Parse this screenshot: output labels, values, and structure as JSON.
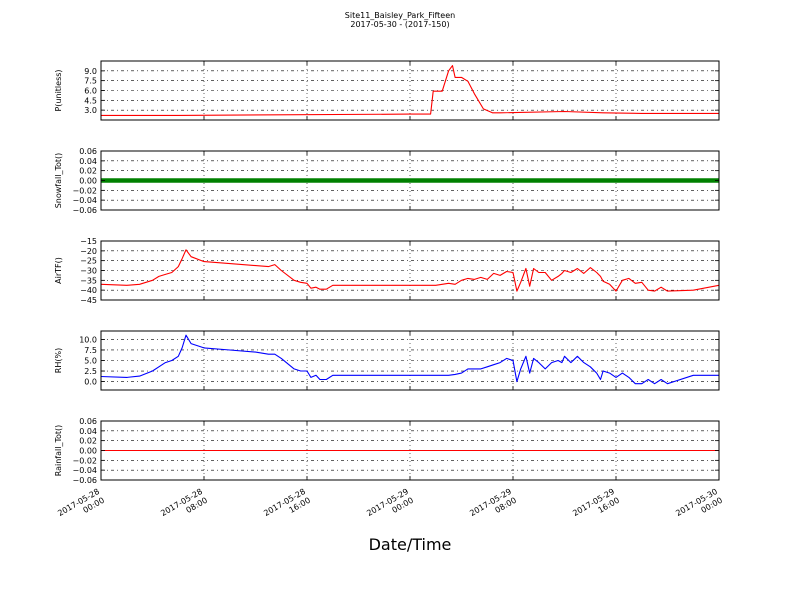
{
  "title": "Site11_Baisley_Park_Fifteen",
  "subtitle": "2017-05-30 - (2017-150)",
  "chart_data": {
    "type": "line",
    "xlabel": "Date/Time",
    "xlim_hours": [
      0,
      48
    ],
    "x_tick_hours": [
      0,
      8,
      16,
      24,
      32,
      40,
      48
    ],
    "x_ticks": [
      "2017-05-28\n00:00",
      "2017-05-28\n08:00",
      "2017-05-28\n16:00",
      "2017-05-29\n00:00",
      "2017-05-29\n08:00",
      "2017-05-29\n16:00",
      "2017-05-30\n00:00"
    ],
    "grid": true,
    "panels": [
      {
        "ylabel": "P(unitless)",
        "ylim": [
          1.5,
          10.5
        ],
        "yticks": [
          "3.0",
          "4.5",
          "6.0",
          "7.5",
          "9.0"
        ],
        "ytick_values": [
          3.0,
          4.5,
          6.0,
          7.5,
          9.0
        ],
        "color": "#ff0000",
        "style": "line",
        "series": [
          {
            "x": [
              0,
              6,
              24,
              25.6,
              25.8,
              26.5,
              27,
              27.3,
              27.5,
              28,
              28.5,
              29,
              29.7,
              30.4,
              31,
              36,
              39,
              42,
              45,
              48
            ],
            "y": [
              2.2,
              2.2,
              2.4,
              2.4,
              5.9,
              5.9,
              9.0,
              9.8,
              8.0,
              8.0,
              7.4,
              5.5,
              3.2,
              2.6,
              2.6,
              2.8,
              2.6,
              2.5,
              2.5,
              2.5
            ]
          }
        ]
      },
      {
        "ylabel": "Snowfall_Tot()",
        "ylim": [
          -0.06,
          0.06
        ],
        "yticks": [
          "−0.06",
          "−0.04",
          "−0.02",
          "0.00",
          "0.02",
          "0.04",
          "0.06"
        ],
        "ytick_values": [
          -0.06,
          -0.04,
          -0.02,
          0.0,
          0.02,
          0.04,
          0.06
        ],
        "color": "#008000",
        "style": "markers",
        "series": [
          {
            "x": [
              0,
              48
            ],
            "y": [
              0,
              0
            ]
          }
        ]
      },
      {
        "ylabel": "AirTF()",
        "ylim": [
          -45,
          -15
        ],
        "yticks": [
          "−45",
          "−40",
          "−35",
          "−30",
          "−25",
          "−20",
          "−15"
        ],
        "ytick_values": [
          -45,
          -40,
          -35,
          -30,
          -25,
          -20,
          -15
        ],
        "color": "#ff0000",
        "style": "line",
        "series": [
          {
            "x": [
              0,
              2,
              3,
              4,
              4.5,
              5,
              5.5,
              6,
              6.3,
              6.6,
              7,
              8,
              10,
              12,
              13,
              13.5,
              14,
              15,
              15.5,
              16,
              16.3,
              16.7,
              17,
              17.5,
              18,
              19,
              21,
              24,
              26,
              27,
              27.5,
              28,
              28.5,
              29,
              29.5,
              30,
              30.5,
              31,
              31.5,
              32,
              32.3,
              32.6,
              33,
              33.3,
              33.6,
              34,
              34.5,
              35,
              35.5,
              35.8,
              36,
              36.5,
              37,
              37.5,
              38,
              38.5,
              38.8,
              39,
              39.5,
              40,
              40.5,
              41,
              41.5,
              42,
              42.5,
              43,
              43.5,
              44,
              46,
              48
            ],
            "y": [
              -37,
              -37.5,
              -37,
              -35,
              -33,
              -32,
              -31,
              -28,
              -24,
              -19.5,
              -23,
              -25.5,
              -26.5,
              -27.5,
              -28,
              -27,
              -30,
              -35,
              -36,
              -36.5,
              -39,
              -38.5,
              -39.5,
              -39.5,
              -37.5,
              -37.5,
              -37.5,
              -37.5,
              -37.5,
              -36.5,
              -37,
              -35,
              -34,
              -34.5,
              -33.5,
              -34.5,
              -31.5,
              -32.5,
              -30.5,
              -31,
              -40.5,
              -36,
              -29,
              -38,
              -29,
              -31,
              -31,
              -35,
              -33,
              -31.5,
              -30,
              -31,
              -29,
              -31.5,
              -28.5,
              -31,
              -33,
              -35.5,
              -37,
              -40.5,
              -35,
              -34,
              -36.5,
              -36,
              -40,
              -40.5,
              -38.5,
              -40.5,
              -40,
              -37.5
            ]
          }
        ]
      },
      {
        "ylabel": "RH(%)",
        "ylim": [
          -2,
          12
        ],
        "yticks": [
          "0.0",
          "2.5",
          "5.0",
          "7.5",
          "10.0"
        ],
        "ytick_values": [
          0.0,
          2.5,
          5.0,
          7.5,
          10.0
        ],
        "color": "#0000ff",
        "style": "line",
        "series": [
          {
            "x": [
              0,
              2,
              3,
              4,
              4.5,
              5,
              5.5,
              6,
              6.3,
              6.6,
              7,
              8,
              10,
              12,
              13,
              13.5,
              14,
              15,
              15.5,
              16,
              16.3,
              16.7,
              17,
              17.5,
              18,
              19,
              21,
              24,
              26,
              27,
              27.5,
              28,
              28.5,
              29,
              29.5,
              30,
              30.5,
              31,
              31.5,
              32,
              32.3,
              32.6,
              33,
              33.3,
              33.6,
              34,
              34.5,
              35,
              35.5,
              35.8,
              36,
              36.5,
              37,
              37.5,
              38,
              38.5,
              38.8,
              39,
              39.5,
              40,
              40.5,
              41,
              41.5,
              42,
              42.5,
              43,
              43.5,
              44,
              46,
              48
            ],
            "y": [
              1.2,
              1.0,
              1.3,
              2.5,
              3.5,
              4.5,
              5.0,
              6.0,
              8.0,
              11.0,
              9.0,
              8.0,
              7.5,
              7.0,
              6.5,
              6.5,
              5.5,
              3.0,
              2.5,
              2.5,
              1.0,
              1.5,
              0.5,
              0.5,
              1.5,
              1.5,
              1.5,
              1.5,
              1.5,
              1.5,
              1.7,
              2.0,
              3.0,
              3.0,
              3.0,
              3.5,
              4.0,
              4.5,
              5.5,
              5.0,
              0.0,
              3.0,
              6.0,
              2.0,
              5.5,
              4.5,
              3.0,
              4.5,
              5.0,
              4.5,
              6.0,
              4.5,
              6.0,
              4.5,
              3.5,
              2.0,
              0.5,
              2.5,
              2.0,
              1.0,
              2.0,
              1.0,
              -0.5,
              -0.5,
              0.5,
              -0.5,
              0.5,
              -0.5,
              1.5,
              1.5
            ]
          }
        ]
      },
      {
        "ylabel": "Rainfall_Tot()",
        "ylim": [
          -0.06,
          0.06
        ],
        "yticks": [
          "−0.06",
          "−0.04",
          "−0.02",
          "0.00",
          "0.02",
          "0.04",
          "0.06"
        ],
        "ytick_values": [
          -0.06,
          -0.04,
          -0.02,
          0.0,
          0.02,
          0.04,
          0.06
        ],
        "color": "#ff0000",
        "style": "line",
        "series": [
          {
            "x": [
              0,
              48
            ],
            "y": [
              0,
              0
            ]
          }
        ]
      }
    ]
  }
}
